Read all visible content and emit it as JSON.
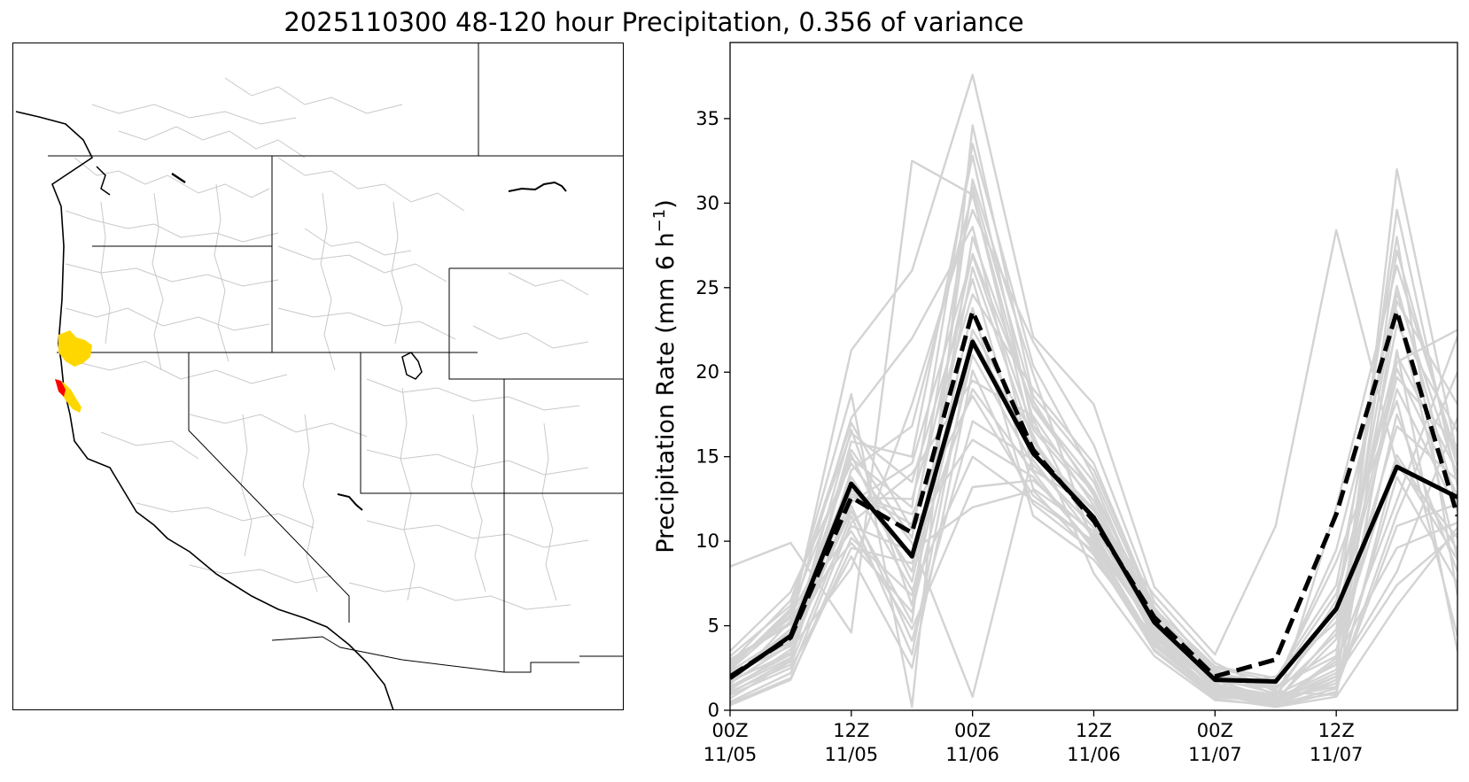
{
  "figure": {
    "title": "2025110300 48-120 hour Precipitation, 0.356 of variance"
  },
  "map": {
    "highlight_colors": [
      "#ffd700",
      "#ff0000"
    ],
    "border_color": "#000000",
    "basin_color": "#c8c8c8"
  },
  "chart_data": {
    "type": "line",
    "title": "",
    "xlabel": "",
    "ylabel": "Precipitation Rate (mm 6 h",
    "ylabel_sup": "−1",
    "ylabel_close": ")",
    "x": [
      "2025-11-05 00Z",
      "2025-11-05 06Z",
      "2025-11-05 12Z",
      "2025-11-05 18Z",
      "2025-11-06 00Z",
      "2025-11-06 06Z",
      "2025-11-06 12Z",
      "2025-11-06 18Z",
      "2025-11-07 00Z",
      "2025-11-07 06Z",
      "2025-11-07 12Z",
      "2025-11-07 18Z",
      "2025-11-08 00Z"
    ],
    "x_ticks": [
      {
        "index": 0,
        "line1": "00Z",
        "line2": "11/05"
      },
      {
        "index": 2,
        "line1": "12Z",
        "line2": "11/05"
      },
      {
        "index": 4,
        "line1": "00Z",
        "line2": "11/06"
      },
      {
        "index": 6,
        "line1": "12Z",
        "line2": "11/06"
      },
      {
        "index": 8,
        "line1": "00Z",
        "line2": "11/07"
      },
      {
        "index": 10,
        "line1": "12Z",
        "line2": "11/07"
      }
    ],
    "xlim": [
      0,
      12
    ],
    "ylim": [
      0,
      39.5
    ],
    "y_ticks": [
      0,
      5,
      10,
      15,
      20,
      25,
      30,
      35
    ],
    "grid": false,
    "legend": "none",
    "colors": {
      "ensemble": "#d3d3d3",
      "mean": "#000000",
      "highlight": "#000000"
    },
    "series_mean": [
      1.9,
      4.4,
      13.4,
      9.1,
      21.8,
      15.2,
      11.4,
      5.2,
      1.8,
      1.7,
      6.0,
      14.4,
      12.6
    ],
    "series_highlight": [
      2.0,
      4.3,
      12.6,
      10.5,
      23.6,
      15.4,
      11.2,
      5.5,
      2.0,
      3.0,
      11.6,
      23.6,
      11.5
    ],
    "series_ensemble": [
      [
        8.5,
        9.9,
        4.6,
        32.5,
        30.5,
        17.2,
        10.1,
        5.0,
        1.2,
        0.6,
        2.0,
        20.6,
        22.5
      ],
      [
        3.0,
        5.2,
        21.3,
        26.0,
        37.6,
        22.1,
        18.1,
        7.3,
        3.3,
        10.9,
        28.4,
        14.5,
        10.2
      ],
      [
        2.5,
        6.0,
        18.7,
        0.2,
        34.6,
        18.6,
        14.2,
        6.1,
        1.5,
        0.4,
        1.0,
        32.0,
        15.0
      ],
      [
        1.0,
        3.0,
        15.9,
        15.0,
        32.8,
        16.8,
        12.9,
        5.7,
        2.0,
        1.4,
        3.2,
        29.6,
        13.3
      ],
      [
        2.2,
        4.0,
        11.8,
        5.2,
        31.4,
        19.9,
        9.8,
        4.9,
        2.4,
        0.9,
        6.1,
        28.0,
        6.8
      ],
      [
        1.5,
        5.3,
        17.3,
        22.0,
        28.6,
        14.2,
        12.0,
        4.1,
        1.0,
        0.2,
        12.0,
        26.3,
        14.9
      ],
      [
        0.3,
        1.8,
        10.2,
        6.8,
        22.5,
        16.3,
        8.1,
        3.2,
        0.6,
        0.3,
        1.8,
        24.2,
        18.1
      ],
      [
        3.5,
        7.0,
        14.6,
        9.9,
        0.8,
        15.2,
        11.8,
        6.8,
        2.8,
        1.1,
        0.9,
        21.3,
        3.5
      ],
      [
        2.8,
        6.5,
        16.4,
        13.5,
        25.5,
        13.1,
        10.6,
        4.4,
        1.4,
        2.0,
        5.2,
        19.0,
        11.8
      ],
      [
        0.9,
        2.5,
        9.1,
        2.5,
        20.1,
        12.2,
        9.4,
        3.8,
        0.9,
        0.7,
        2.4,
        17.5,
        8.2
      ],
      [
        1.8,
        4.5,
        13.0,
        11.0,
        27.0,
        18.0,
        13.5,
        5.2,
        1.8,
        0.5,
        4.8,
        22.8,
        16.5
      ],
      [
        2.1,
        3.8,
        12.1,
        4.1,
        17.1,
        14.8,
        10.2,
        4.8,
        1.2,
        0.4,
        2.9,
        12.4,
        22.1
      ],
      [
        1.2,
        3.6,
        8.4,
        18.1,
        29.6,
        21.8,
        15.7,
        6.4,
        2.2,
        1.6,
        8.8,
        18.3,
        4.4
      ],
      [
        2.6,
        5.8,
        15.1,
        7.6,
        23.8,
        11.5,
        8.9,
        4.3,
        1.1,
        0.3,
        1.3,
        10.9,
        12.2
      ],
      [
        0.5,
        2.2,
        11.1,
        14.0,
        19.5,
        17.4,
        12.1,
        5.5,
        1.7,
        1.3,
        3.6,
        15.1,
        9.5
      ],
      [
        1.9,
        4.8,
        13.8,
        8.2,
        26.2,
        15.9,
        11.3,
        4.6,
        1.4,
        0.8,
        6.5,
        21.0,
        14.1
      ],
      [
        3.2,
        6.2,
        17.0,
        10.7,
        16.0,
        13.8,
        9.7,
        3.9,
        1.0,
        0.6,
        2.2,
        8.2,
        17.3
      ],
      [
        1.4,
        3.3,
        12.6,
        12.5,
        24.6,
        19.0,
        14.6,
        6.0,
        2.6,
        1.9,
        7.4,
        25.1,
        12.0
      ],
      [
        2.4,
        5.5,
        9.9,
        5.8,
        21.0,
        14.5,
        10.8,
        5.1,
        1.3,
        0.2,
        0.8,
        6.2,
        10.8
      ],
      [
        0.7,
        2.9,
        14.2,
        16.8,
        30.6,
        16.0,
        11.1,
        4.2,
        1.9,
        1.0,
        4.5,
        16.8,
        13.6
      ],
      [
        2.0,
        4.1,
        10.9,
        9.4,
        12.0,
        13.0,
        9.2,
        3.6,
        0.8,
        0.5,
        1.6,
        13.8,
        7.5
      ],
      [
        1.6,
        3.9,
        16.6,
        6.2,
        28.0,
        17.9,
        13.0,
        5.8,
        2.3,
        1.2,
        5.6,
        19.7,
        15.6
      ],
      [
        2.9,
        5.1,
        12.8,
        11.6,
        18.6,
        12.7,
        9.9,
        4.0,
        1.6,
        0.4,
        3.1,
        9.6,
        11.1
      ],
      [
        1.1,
        2.7,
        11.5,
        3.3,
        22.0,
        15.6,
        11.9,
        5.3,
        1.5,
        0.9,
        2.7,
        27.2,
        14.4
      ],
      [
        2.3,
        4.6,
        14.9,
        12.0,
        33.5,
        20.4,
        13.8,
        5.9,
        2.1,
        1.5,
        9.5,
        23.6,
        9.0
      ],
      [
        1.7,
        3.4,
        13.5,
        7.1,
        15.0,
        12.4,
        10.0,
        4.7,
        1.3,
        0.7,
        1.4,
        11.6,
        20.0
      ],
      [
        2.7,
        5.6,
        12.3,
        14.6,
        26.9,
        16.6,
        12.4,
        5.6,
        2.5,
        1.7,
        6.9,
        20.2,
        12.7
      ],
      [
        0.4,
        1.9,
        9.6,
        8.7,
        19.0,
        14.1,
        9.5,
        3.5,
        0.7,
        0.2,
        1.1,
        14.8,
        8.9
      ],
      [
        1.3,
        3.1,
        15.4,
        10.2,
        31.0,
        18.3,
        12.7,
        5.0,
        1.8,
        0.6,
        4.2,
        24.7,
        13.9
      ],
      [
        2.5,
        5.9,
        10.6,
        4.8,
        13.2,
        13.6,
        10.4,
        4.5,
        1.4,
        0.3,
        2.0,
        7.4,
        10.5
      ]
    ]
  }
}
